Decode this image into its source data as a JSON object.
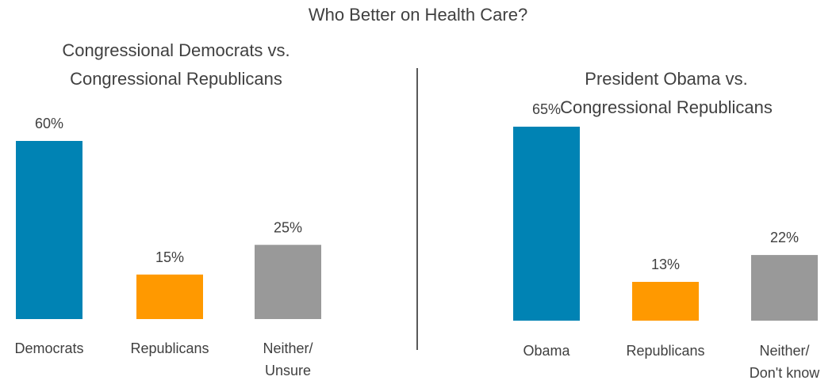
{
  "title": "Who Better on Health Care?",
  "chart_data": [
    {
      "type": "bar",
      "title": [
        "Congressional Democrats vs.",
        "Congressional Republicans"
      ],
      "categories": [
        [
          "Democrats"
        ],
        [
          "Republicans"
        ],
        [
          "Neither/",
          "Unsure"
        ]
      ],
      "values": [
        60,
        15,
        25
      ],
      "value_labels": [
        "60%",
        "15%",
        "25%"
      ],
      "colors": [
        "#0083b4",
        "#ff9900",
        "#999999"
      ],
      "ylim": [
        0,
        70
      ],
      "grid": false
    },
    {
      "type": "bar",
      "title": [
        "President Obama vs.",
        "Congressional Republicans"
      ],
      "categories": [
        [
          "Obama"
        ],
        [
          "Republicans"
        ],
        [
          "Neither/",
          "Don't know"
        ]
      ],
      "values": [
        65,
        13,
        22
      ],
      "value_labels": [
        "65%",
        "13%",
        "22%"
      ],
      "colors": [
        "#0083b4",
        "#ff9900",
        "#999999"
      ],
      "ylim": [
        0,
        70
      ],
      "grid": false
    }
  ]
}
